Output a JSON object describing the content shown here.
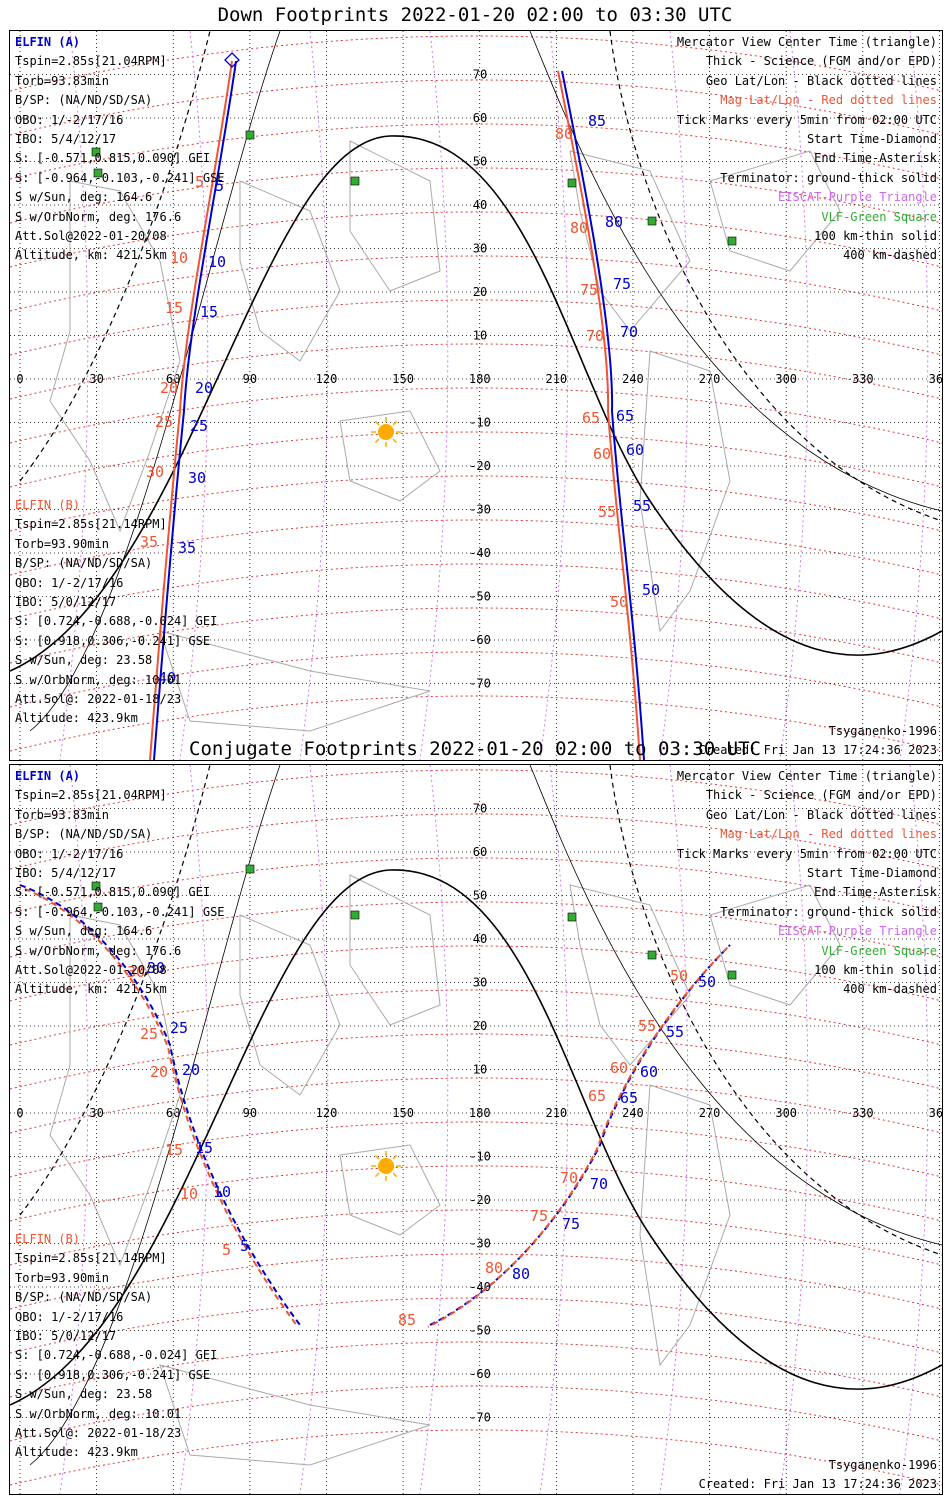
{
  "panels": [
    {
      "title": "Down Footprints 2022-01-20 02:00 to 03:30 UTC",
      "sc_a_name": "ELFIN (A)",
      "sc_a": [
        "Tspin=2.85s[21.04RPM]",
        "Torb=93.83min",
        "B/SP: (NA/ND/SD/SA)",
        "OBO: 1/-2/17/16",
        "IBO: 5/4/12/17",
        "S: [-0.571,0.815,0.090] GEI",
        "S: [-0.964,-0.103,-0.241] GSE",
        "S w/Sun, deg: 164.6",
        "S w/OrbNorm, deg: 176.6",
        "Att.Sol@2022-01-20/08",
        "Altitude, km: 421.5km"
      ],
      "sc_b_name": "ELFIN (B)",
      "sc_b": [
        "Tspin=2.85s[21.14RPM]",
        "Torb=93.90min",
        "B/SP: (NA/ND/SD/SA)",
        "OBO: 1/-2/17/16",
        "IBO: 5/0/12/17",
        "S: [0.724,-0.688,-0.024] GEI",
        "S: [0.918,0.306,-0.241] GSE",
        "S w/Sun, deg: 23.58",
        "S w/OrbNorm, deg: 10.01",
        "Att.Sol@: 2022-01-18/23"
      ],
      "altitude_b": "Altitude: 423.9km",
      "model": "Tsyganenko-1996",
      "created": "Created: Fri Jan 13 17:24:36 2023"
    },
    {
      "title": "Conjugate Footprints 2022-01-20 02:00 to 03:30 UTC",
      "sc_a_name": "ELFIN (A)",
      "sc_a": [
        "Tspin=2.85s[21.04RPM]",
        "Torb=93.83min",
        "B/SP: (NA/ND/SD/SA)",
        "OBO: 1/-2/17/16",
        "IBO: 5/4/12/17",
        "S: [-0.571,0.815,0.090] GEI",
        "S: [-0.964,-0.103,-0.241] GSE",
        "S w/Sun, deg: 164.6",
        "S w/OrbNorm, deg: 176.6",
        "Att.Sol@2022-01-20/08",
        "Altitude, km: 421.5km"
      ],
      "sc_b_name": "ELFIN (B)",
      "sc_b": [
        "Tspin=2.85s[21.14RPM]",
        "Torb=93.90min",
        "B/SP: (NA/ND/SD/SA)",
        "OBO: 1/-2/17/16",
        "IBO: 5/0/12/17",
        "S: [0.724,-0.688,-0.024] GEI",
        "S: [0.918,0.306,-0.241] GSE",
        "S w/Sun, deg: 23.58",
        "S w/OrbNorm, deg: 10.01",
        "Att.Sol@: 2022-01-18/23"
      ],
      "altitude_b": "Altitude: 423.9km",
      "model": "Tsyganenko-1996",
      "created": "Created: Fri Jan 13 17:24:36 2023"
    }
  ],
  "legend": {
    "black": [
      "Mercator View Center Time (triangle)",
      "Thick - Science (FGM and/or EPD)",
      "Geo Lat/Lon - Black dotted lines"
    ],
    "red": "Mag Lat/Lon - Red dotted lines",
    "black2": [
      "Tick Marks every 5min from 02:00 UTC",
      "Start Time-Diamond",
      "End Time-Asterisk",
      "Terminator: ground-thick solid"
    ],
    "purple": "EISCAT-Purple Triangle",
    "green": "VLF-Green Square",
    "black3": [
      "100 km-thin solid",
      "400 km-dashed"
    ]
  },
  "lon_labels": [
    "0",
    "30",
    "60",
    "90",
    "120",
    "150",
    "180",
    "210",
    "240",
    "270",
    "300",
    "330",
    "360"
  ],
  "lat_labels": [
    "70",
    "60",
    "50",
    "40",
    "30",
    "20",
    "10",
    "-10",
    "-20",
    "-30",
    "-40",
    "-50",
    "-60",
    "-70"
  ],
  "down_ticks": {
    "a_left": [
      "5",
      "10",
      "15",
      "20",
      "25",
      "30",
      "35",
      "40"
    ],
    "b_left": [
      "5",
      "10",
      "15",
      "20",
      "25",
      "30",
      "35"
    ],
    "a_right": [
      "85",
      "80",
      "75",
      "70",
      "65",
      "60",
      "55",
      "50"
    ],
    "b_right": [
      "80",
      "80",
      "75",
      "70",
      "65",
      "60",
      "55",
      "50"
    ]
  },
  "conj_ticks": {
    "a_left": [
      "30",
      "25",
      "20",
      "15",
      "10",
      "5"
    ],
    "b_left": [
      "30",
      "25",
      "20",
      "15",
      "10",
      "5"
    ],
    "a_right": [
      "50",
      "55",
      "60",
      "65",
      "70",
      "75",
      "80"
    ],
    "b_right": [
      "50",
      "55",
      "60",
      "65",
      "70",
      "75",
      "80",
      "85"
    ]
  },
  "colors": {
    "sc_a": "#0000cc",
    "sc_b": "#ee5533",
    "grid": "#000000",
    "mag": "#dd2222",
    "eiscat": "#cc66ee",
    "vlf": "#33aa33",
    "sun": "#ffaa00"
  }
}
